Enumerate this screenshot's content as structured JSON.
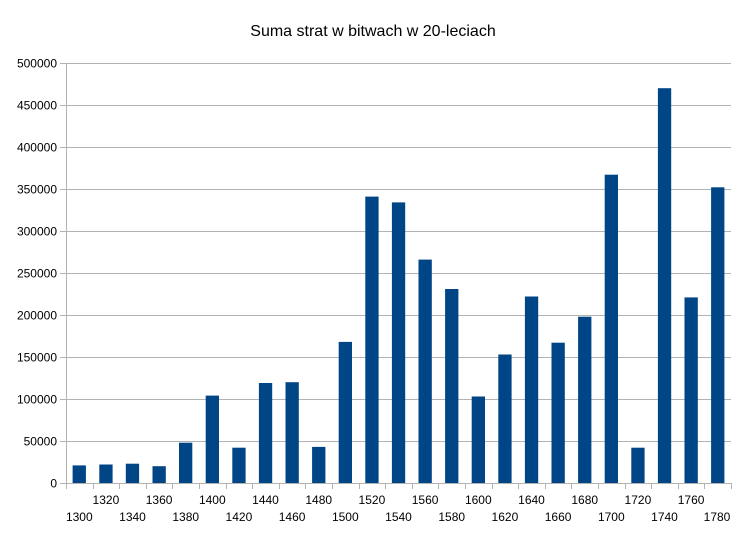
{
  "chart_data": {
    "type": "bar",
    "title": "Suma strat w bitwach w 20-leciach",
    "categories": [
      "1300",
      "1320",
      "1340",
      "1360",
      "1380",
      "1400",
      "1420",
      "1440",
      "1460",
      "1480",
      "1500",
      "1520",
      "1540",
      "1560",
      "1580",
      "1600",
      "1620",
      "1640",
      "1660",
      "1680",
      "1700",
      "1720",
      "1740",
      "1760",
      "1780"
    ],
    "values": [
      21000,
      22000,
      23000,
      20000,
      48000,
      104000,
      42000,
      119000,
      120000,
      43000,
      168000,
      341000,
      334000,
      266000,
      231000,
      103000,
      153000,
      222000,
      167000,
      198000,
      367000,
      42000,
      470000,
      221000,
      352000
    ],
    "ylim": [
      0,
      500000
    ],
    "yticks": [
      "0",
      "50000",
      "100000",
      "150000",
      "200000",
      "250000",
      "300000",
      "350000",
      "400000",
      "450000",
      "500000"
    ],
    "grid": true,
    "bar_color": "#004586",
    "xlabel": "",
    "ylabel": ""
  }
}
